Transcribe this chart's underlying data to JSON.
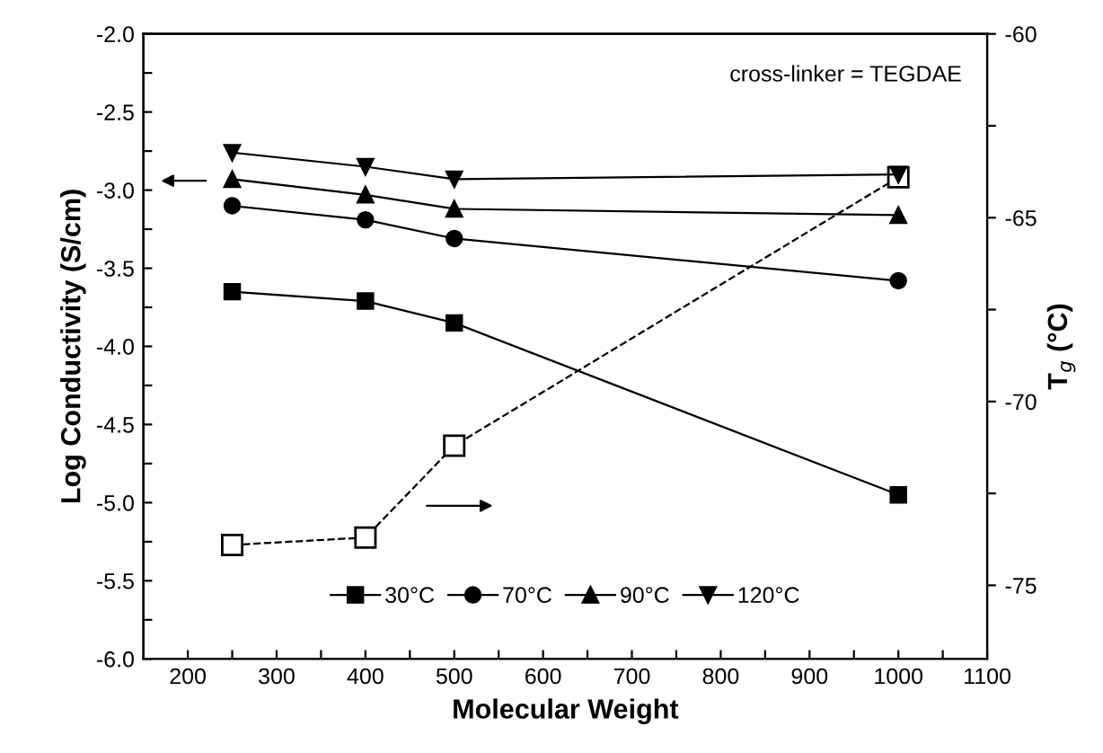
{
  "chart_data": {
    "type": "line",
    "xlabel": "Molecular Weight",
    "ylabel": "Log Conductivity (S/cm)",
    "y2label": "T$_{g}$ (°C)",
    "annotations": [
      "cross-linker = TEGDAE"
    ],
    "x": [
      250,
      400,
      500,
      1000
    ],
    "xlim": [
      150,
      1100
    ],
    "xticks": [
      200,
      {
        "value": 250,
        "label": null
      },
      300,
      {
        "value": 350,
        "label": null
      },
      400,
      {
        "value": 450,
        "label": null
      },
      500,
      {
        "value": 550,
        "label": null
      },
      600,
      {
        "value": 650,
        "label": null
      },
      700,
      {
        "value": 750,
        "label": null
      },
      800,
      {
        "value": 850,
        "label": null
      },
      900,
      {
        "value": 950,
        "label": null
      },
      1000,
      {
        "value": 1050,
        "label": null
      },
      1100
    ],
    "ylim": [
      -6.0,
      -2.0
    ],
    "yticks": [
      {
        "value": -6.0,
        "label": "-6.0"
      },
      {
        "value": -5.75,
        "label": null
      },
      {
        "value": -5.5,
        "label": "-5.5"
      },
      {
        "value": -5.25,
        "label": null
      },
      {
        "value": -5.0,
        "label": "-5.0"
      },
      {
        "value": -4.75,
        "label": null
      },
      {
        "value": -4.5,
        "label": "-4.5"
      },
      {
        "value": -4.25,
        "label": null
      },
      {
        "value": -4.0,
        "label": "-4.0"
      },
      {
        "value": -3.75,
        "label": null
      },
      {
        "value": -3.5,
        "label": "-3.5"
      },
      {
        "value": -3.25,
        "label": null
      },
      {
        "value": -3.0,
        "label": "-3.0"
      },
      {
        "value": -2.75,
        "label": null
      },
      {
        "value": -2.5,
        "label": "-2.5"
      },
      {
        "value": -2.25,
        "label": null
      },
      {
        "value": -2.0,
        "label": "-2.0"
      }
    ],
    "y2lim": [
      -77,
      -60
    ],
    "y2ticks": [
      -75,
      {
        "value": -72.5,
        "label": null
      },
      -70,
      {
        "value": -67.5,
        "label": null
      },
      -65,
      {
        "value": -62.5,
        "label": null
      },
      -60
    ],
    "grid": false,
    "legend": "bottom",
    "line_style": "solid",
    "series": [
      {
        "name": "30°C",
        "color": "#000000",
        "marker": "square",
        "values": [
          -3.65,
          -3.71,
          -3.85,
          -4.95
        ]
      },
      {
        "name": "70°C",
        "color": "#000000",
        "marker": "circle",
        "values": [
          -3.1,
          -3.19,
          -3.31,
          -3.58
        ]
      },
      {
        "name": "90°C",
        "color": "#000000",
        "marker": "triangle",
        "values": [
          -2.93,
          -3.03,
          -3.12,
          -3.16
        ]
      },
      {
        "name": "120°C",
        "color": "#000000",
        "marker": "triangle_down",
        "values": [
          -2.76,
          -2.85,
          -2.93,
          -2.9
        ]
      },
      {
        "color": "#000000",
        "marker": "square_open",
        "line_style": "dashed",
        "axis": "y2",
        "values": [
          -73.9,
          -73.7,
          -71.2,
          -63.9
        ]
      }
    ]
  }
}
